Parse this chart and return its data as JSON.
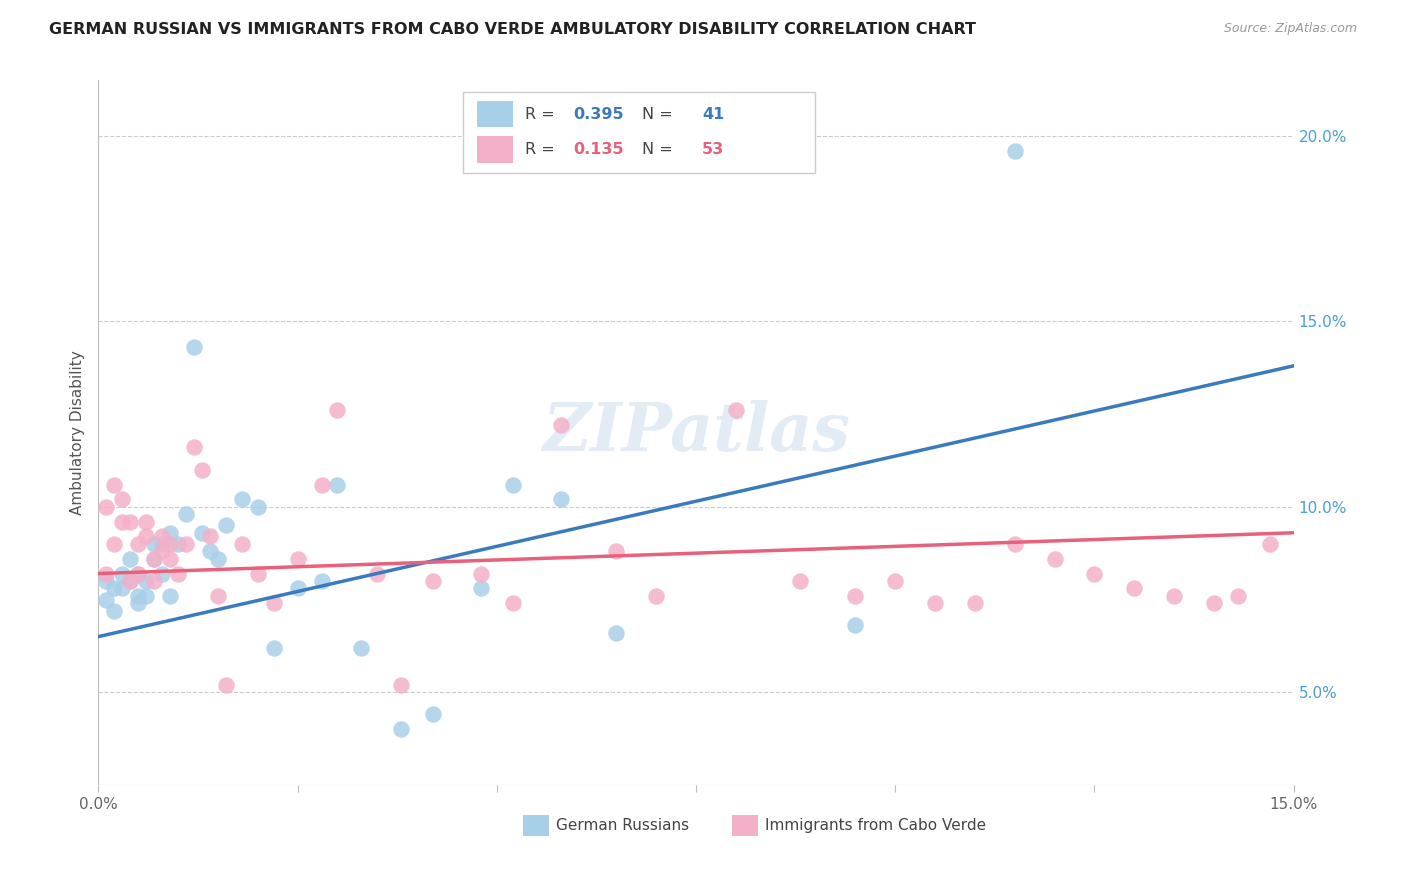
{
  "title": "GERMAN RUSSIAN VS IMMIGRANTS FROM CABO VERDE AMBULATORY DISABILITY CORRELATION CHART",
  "source": "Source: ZipAtlas.com",
  "ylabel": "Ambulatory Disability",
  "xlim": [
    0.0,
    0.15
  ],
  "ylim": [
    0.025,
    0.215
  ],
  "yticks": [
    0.05,
    0.1,
    0.15,
    0.2
  ],
  "ytick_labels": [
    "5.0%",
    "10.0%",
    "15.0%",
    "20.0%"
  ],
  "xticks": [
    0.0,
    0.025,
    0.05,
    0.075,
    0.1,
    0.125,
    0.15
  ],
  "xtick_labels": [
    "0.0%",
    "",
    "",
    "",
    "",
    "",
    "15.0%"
  ],
  "blue_R": 0.395,
  "blue_N": 41,
  "pink_R": 0.135,
  "pink_N": 53,
  "blue_color": "#a8cfe8",
  "pink_color": "#f4b0c8",
  "blue_line_color": "#3a7abf",
  "pink_line_color": "#e8607a",
  "legend_label_blue": "German Russians",
  "legend_label_pink": "Immigrants from Cabo Verde",
  "watermark": "ZIPatlas",
  "blue_x": [
    0.001,
    0.001,
    0.002,
    0.002,
    0.003,
    0.003,
    0.004,
    0.004,
    0.005,
    0.005,
    0.005,
    0.006,
    0.006,
    0.007,
    0.007,
    0.008,
    0.008,
    0.009,
    0.009,
    0.01,
    0.011,
    0.012,
    0.013,
    0.014,
    0.015,
    0.016,
    0.018,
    0.02,
    0.022,
    0.025,
    0.028,
    0.03,
    0.033,
    0.038,
    0.042,
    0.048,
    0.052,
    0.058,
    0.065,
    0.095,
    0.115
  ],
  "blue_y": [
    0.075,
    0.08,
    0.072,
    0.078,
    0.078,
    0.082,
    0.08,
    0.086,
    0.074,
    0.076,
    0.082,
    0.08,
    0.076,
    0.09,
    0.086,
    0.082,
    0.09,
    0.076,
    0.093,
    0.09,
    0.098,
    0.143,
    0.093,
    0.088,
    0.086,
    0.095,
    0.102,
    0.1,
    0.062,
    0.078,
    0.08,
    0.106,
    0.062,
    0.04,
    0.044,
    0.078,
    0.106,
    0.102,
    0.066,
    0.068,
    0.196
  ],
  "pink_x": [
    0.001,
    0.001,
    0.002,
    0.002,
    0.003,
    0.003,
    0.004,
    0.004,
    0.005,
    0.005,
    0.006,
    0.006,
    0.007,
    0.007,
    0.008,
    0.008,
    0.009,
    0.009,
    0.01,
    0.011,
    0.012,
    0.013,
    0.014,
    0.015,
    0.016,
    0.018,
    0.02,
    0.022,
    0.025,
    0.028,
    0.03,
    0.035,
    0.038,
    0.042,
    0.048,
    0.052,
    0.058,
    0.065,
    0.07,
    0.08,
    0.088,
    0.095,
    0.1,
    0.105,
    0.11,
    0.115,
    0.12,
    0.125,
    0.13,
    0.135,
    0.14,
    0.143,
    0.147
  ],
  "pink_y": [
    0.082,
    0.1,
    0.09,
    0.106,
    0.096,
    0.102,
    0.08,
    0.096,
    0.082,
    0.09,
    0.092,
    0.096,
    0.086,
    0.08,
    0.092,
    0.088,
    0.09,
    0.086,
    0.082,
    0.09,
    0.116,
    0.11,
    0.092,
    0.076,
    0.052,
    0.09,
    0.082,
    0.074,
    0.086,
    0.106,
    0.126,
    0.082,
    0.052,
    0.08,
    0.082,
    0.074,
    0.122,
    0.088,
    0.076,
    0.126,
    0.08,
    0.076,
    0.08,
    0.074,
    0.074,
    0.09,
    0.086,
    0.082,
    0.078,
    0.076,
    0.074,
    0.076,
    0.09
  ],
  "blue_line_x0": 0.0,
  "blue_line_y0": 0.065,
  "blue_line_x1": 0.15,
  "blue_line_y1": 0.138,
  "pink_line_x0": 0.0,
  "pink_line_y0": 0.082,
  "pink_line_x1": 0.15,
  "pink_line_y1": 0.093
}
